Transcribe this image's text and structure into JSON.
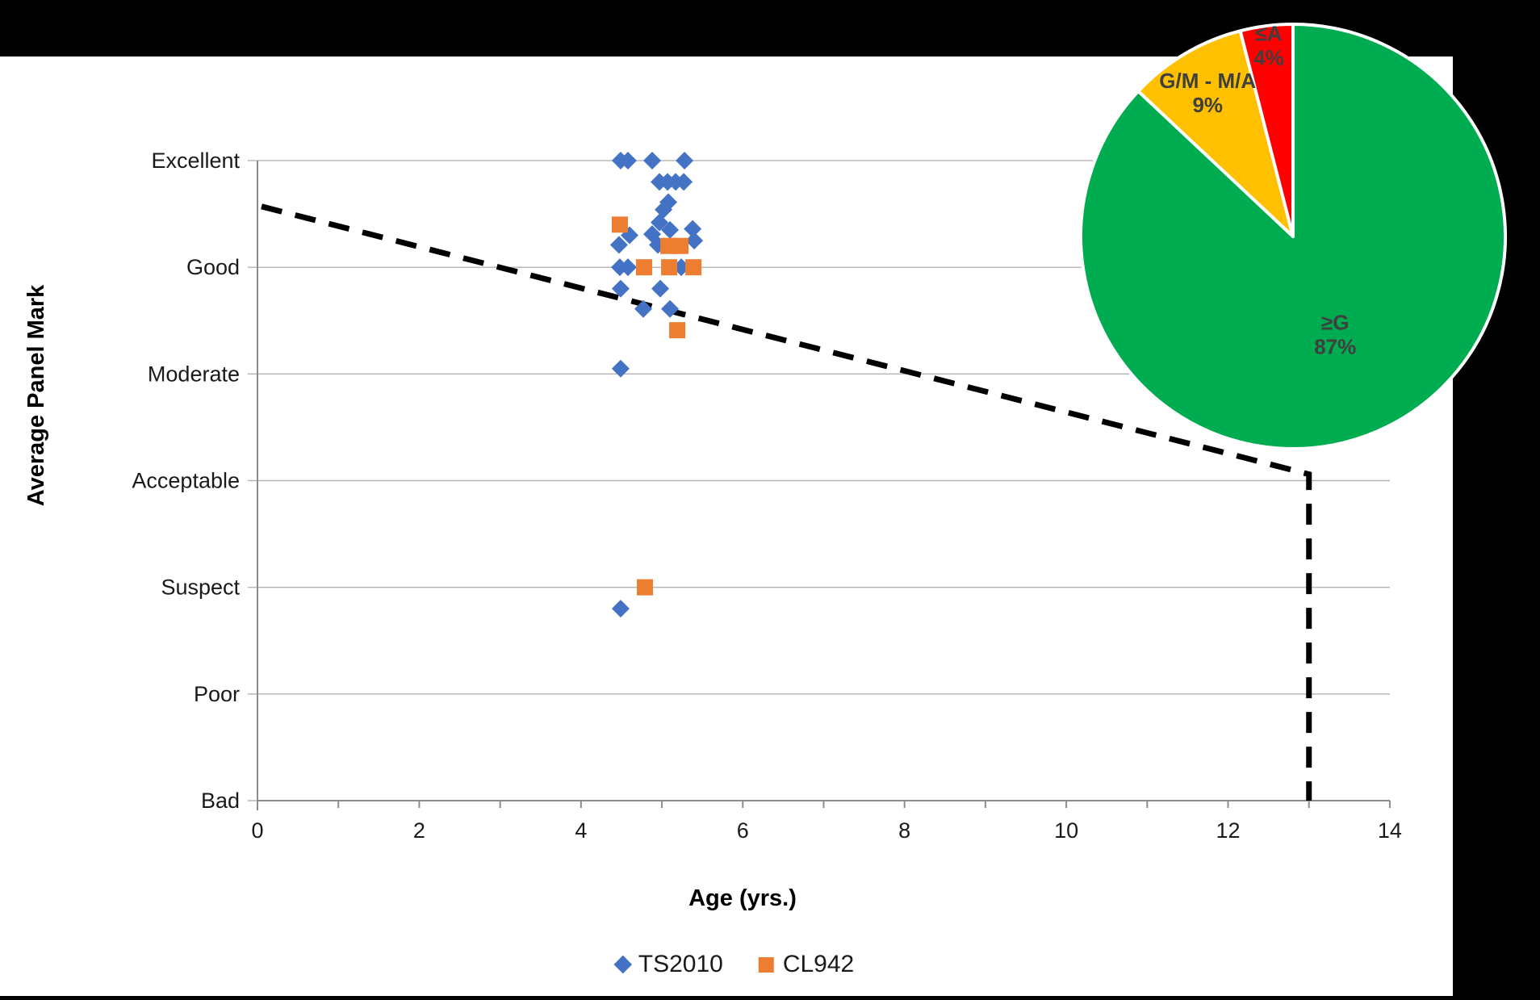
{
  "figure": {
    "background_color": "#000000",
    "panel_color": "#FFFFFF",
    "gridline_color": "#B3B3B3",
    "axis_color": "#8C8C8C"
  },
  "chart_data": [
    {
      "type": "scatter",
      "title": "",
      "xlabel": "Age (yrs.)",
      "ylabel": "Average Panel Mark",
      "xlim": [
        0,
        14
      ],
      "x_ticks": [
        0,
        2,
        4,
        6,
        8,
        10,
        12,
        14
      ],
      "ylim": [
        0,
        6
      ],
      "y_categories": [
        "Bad",
        "Poor",
        "Suspect",
        "Acceptable",
        "Moderate",
        "Good",
        "Excellent"
      ],
      "grid": "horizontal",
      "legend_position": "bottom-center",
      "series": [
        {
          "name": "TS2010",
          "marker": "diamond",
          "color": "#4472C4",
          "points": [
            [
              4.49,
              6.0
            ],
            [
              4.58,
              6.0
            ],
            [
              4.88,
              6.0
            ],
            [
              5.28,
              6.0
            ],
            [
              4.97,
              5.8
            ],
            [
              5.07,
              5.8
            ],
            [
              5.17,
              5.8
            ],
            [
              5.27,
              5.8
            ],
            [
              5.08,
              5.61
            ],
            [
              5.02,
              5.54
            ],
            [
              4.97,
              5.42
            ],
            [
              5.1,
              5.35
            ],
            [
              5.38,
              5.36
            ],
            [
              4.6,
              5.3
            ],
            [
              4.88,
              5.31
            ],
            [
              4.47,
              5.21
            ],
            [
              4.95,
              5.21
            ],
            [
              5.4,
              5.25
            ],
            [
              4.48,
              5.0
            ],
            [
              4.58,
              5.0
            ],
            [
              5.24,
              5.0
            ],
            [
              4.49,
              4.8
            ],
            [
              4.98,
              4.8
            ],
            [
              4.77,
              4.61
            ],
            [
              5.1,
              4.61
            ],
            [
              4.49,
              4.05
            ],
            [
              4.49,
              1.8
            ]
          ]
        },
        {
          "name": "CL942",
          "marker": "square",
          "color": "#ED7D31",
          "points": [
            [
              4.48,
              5.4
            ],
            [
              5.08,
              5.2
            ],
            [
              5.23,
              5.2
            ],
            [
              4.78,
              5.0
            ],
            [
              5.09,
              5.0
            ],
            [
              5.39,
              5.0
            ],
            [
              5.19,
              4.41
            ],
            [
              4.79,
              2.0
            ]
          ]
        }
      ],
      "trend_line": {
        "style": "dashed",
        "color": "#000000",
        "points": [
          [
            0.05,
            5.57
          ],
          [
            13.0,
            3.06
          ],
          [
            13.0,
            0.0
          ]
        ]
      }
    },
    {
      "type": "pie",
      "position": "top-right-inset",
      "start_angle_deg": 0,
      "direction": "clockwise",
      "label_color": "#3F3F3F",
      "separator_color": "#FFFFFF",
      "slices": [
        {
          "label": "≥G",
          "pct": 87,
          "color": "#00AC50",
          "label_r": 0.5
        },
        {
          "label": "G/M - M/A",
          "pct": 9,
          "color": "#FFC000",
          "label_r": 0.79
        },
        {
          "label": "≤A",
          "pct": 4,
          "color": "#FF0000",
          "label_r": 0.91
        }
      ]
    }
  ]
}
